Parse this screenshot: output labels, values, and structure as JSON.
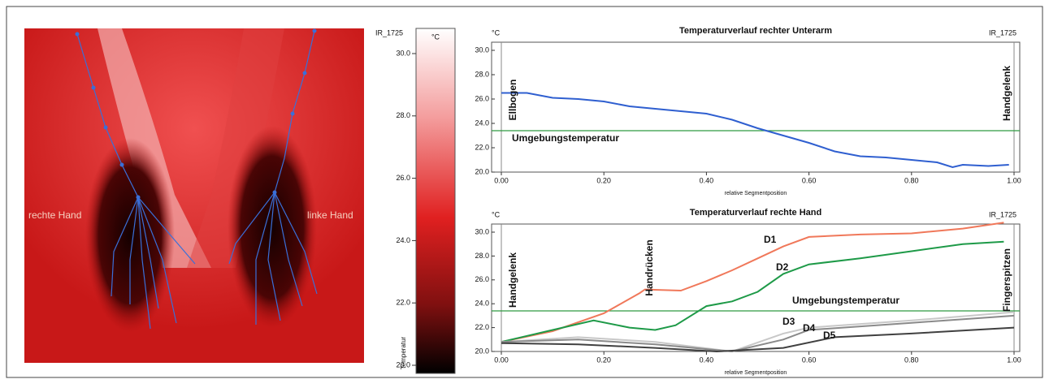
{
  "image": {
    "labels": [
      "rechte Hand",
      "linke Hand"
    ]
  },
  "chart_data": [
    {
      "type": "colorbar",
      "title": "°C",
      "source": "IR_1725",
      "ylabel": "Temperatur",
      "ylim": [
        20,
        30
      ],
      "yticks": [
        {
          "value": 30,
          "label": "30.0"
        },
        {
          "value": 28,
          "label": "28.0"
        },
        {
          "value": 26,
          "label": "26.0"
        },
        {
          "value": 24,
          "label": "24.0"
        },
        {
          "value": 22,
          "label": "22.0"
        },
        {
          "value": 20,
          "label": "20.0"
        }
      ]
    },
    {
      "type": "line",
      "title": "Temperaturverlauf rechter Unterarm",
      "unit": "°C",
      "source": "IR_1725",
      "xlabel": "relative Segmentposition",
      "xlim": [
        0,
        1
      ],
      "ylim": [
        20,
        30
      ],
      "xticks": [
        {
          "value": 0,
          "label": "0.00"
        },
        {
          "value": 0.2,
          "label": "0.20"
        },
        {
          "value": 0.4,
          "label": "0.40"
        },
        {
          "value": 0.6,
          "label": "0.60"
        },
        {
          "value": 0.8,
          "label": "0.80"
        },
        {
          "value": 1,
          "label": "1.00"
        }
      ],
      "yticks": [
        {
          "value": 20,
          "label": "20.0"
        },
        {
          "value": 22,
          "label": "22.0"
        },
        {
          "value": 24,
          "label": "24.0"
        },
        {
          "value": 26,
          "label": "26.0"
        },
        {
          "value": 28,
          "label": "28.0"
        },
        {
          "value": 30,
          "label": "30.0"
        }
      ],
      "reference_line": {
        "value": 23.4,
        "label": "Umgebungstemperatur",
        "color": "#2e9a40"
      },
      "annotations": [
        "Ellbogen",
        "Handgelenk"
      ],
      "series": [
        {
          "color": "#2f5fd0",
          "x": [
            0,
            0.05,
            0.1,
            0.15,
            0.2,
            0.25,
            0.3,
            0.35,
            0.4,
            0.45,
            0.5,
            0.55,
            0.6,
            0.65,
            0.7,
            0.75,
            0.8,
            0.85,
            0.88,
            0.9,
            0.95,
            0.99
          ],
          "values": [
            26.5,
            26.5,
            26.1,
            26.0,
            25.8,
            25.4,
            25.2,
            25.0,
            24.8,
            24.3,
            23.6,
            23.0,
            22.4,
            21.7,
            21.3,
            21.2,
            21.0,
            20.8,
            20.4,
            20.6,
            20.5,
            20.6
          ]
        }
      ]
    },
    {
      "type": "line",
      "title": "Temperaturverlauf rechte Hand",
      "unit": "°C",
      "source": "IR_1725",
      "xlabel": "relative Segmentposition",
      "xlim": [
        0,
        1
      ],
      "ylim": [
        20,
        30
      ],
      "xticks": [
        {
          "value": 0,
          "label": "0.00"
        },
        {
          "value": 0.2,
          "label": "0.20"
        },
        {
          "value": 0.4,
          "label": "0.40"
        },
        {
          "value": 0.6,
          "label": "0.60"
        },
        {
          "value": 0.8,
          "label": "0.80"
        },
        {
          "value": 1,
          "label": "1.00"
        }
      ],
      "yticks": [
        {
          "value": 20,
          "label": "20.0"
        },
        {
          "value": 22,
          "label": "22.0"
        },
        {
          "value": 24,
          "label": "24.0"
        },
        {
          "value": 26,
          "label": "26.0"
        },
        {
          "value": 28,
          "label": "28.0"
        },
        {
          "value": 30,
          "label": "30.0"
        }
      ],
      "reference_line": {
        "value": 23.4,
        "label": "Umgebungstemperatur",
        "color": "#2e9a40"
      },
      "annotations": [
        "Handgelenk",
        "Handrücken",
        "Fingerspitzen"
      ],
      "series": [
        {
          "name": "D1",
          "color": "#f0785a",
          "x": [
            0,
            0.1,
            0.2,
            0.27,
            0.28,
            0.35,
            0.4,
            0.45,
            0.5,
            0.55,
            0.6,
            0.7,
            0.8,
            0.9,
            0.98
          ],
          "values": [
            20.8,
            21.7,
            23.2,
            24.9,
            25.2,
            25.1,
            25.9,
            26.8,
            27.8,
            28.8,
            29.6,
            29.8,
            29.9,
            30.3,
            30.8
          ]
        },
        {
          "name": "D2",
          "color": "#1e9a48",
          "x": [
            0,
            0.1,
            0.18,
            0.25,
            0.3,
            0.34,
            0.4,
            0.45,
            0.5,
            0.55,
            0.6,
            0.7,
            0.8,
            0.9,
            0.98
          ],
          "values": [
            20.8,
            21.8,
            22.6,
            22.0,
            21.8,
            22.2,
            23.8,
            24.2,
            25.0,
            26.5,
            27.3,
            27.8,
            28.4,
            29.0,
            29.2
          ]
        },
        {
          "name": "D3",
          "color": "#c8c8c8",
          "x": [
            0,
            0.15,
            0.3,
            0.45,
            0.55,
            0.6,
            0.8,
            1
          ],
          "values": [
            20.8,
            21.2,
            20.8,
            20.0,
            21.5,
            22.0,
            22.6,
            23.3
          ]
        },
        {
          "name": "D4",
          "color": "#8a8a8a",
          "x": [
            0,
            0.15,
            0.3,
            0.45,
            0.55,
            0.6,
            0.8,
            1
          ],
          "values": [
            20.8,
            21.0,
            20.6,
            20.0,
            21.0,
            21.8,
            22.4,
            23.0
          ]
        },
        {
          "name": "D5",
          "color": "#404040",
          "x": [
            0,
            0.15,
            0.3,
            0.42,
            0.55,
            0.65,
            0.8,
            1
          ],
          "values": [
            20.7,
            20.6,
            20.3,
            20.0,
            20.3,
            21.2,
            21.5,
            22.0
          ]
        }
      ]
    }
  ]
}
